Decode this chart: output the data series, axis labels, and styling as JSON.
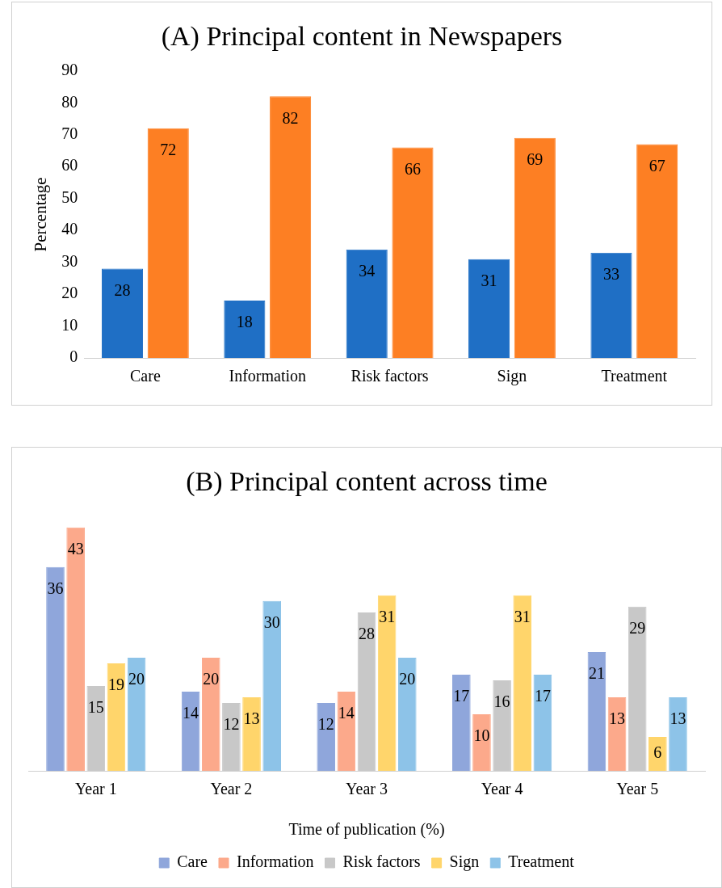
{
  "chart_data": [
    {
      "type": "bar",
      "title": "(A) Principal content in Newspapers",
      "ylabel": "Percentage",
      "categories": [
        "Care",
        "Information",
        "Risk factors",
        "Sign",
        "Treatment"
      ],
      "series": [
        {
          "color": "#1f6fc5",
          "values": [
            28,
            18,
            34,
            31,
            33
          ]
        },
        {
          "color": "#fd7f23",
          "values": [
            72,
            82,
            66,
            69,
            67
          ]
        }
      ],
      "ylim": [
        0,
        90
      ],
      "yticks": [
        0,
        10,
        20,
        30,
        40,
        50,
        60,
        70,
        80,
        90
      ],
      "grid": false,
      "legend": false,
      "data_labels": true
    },
    {
      "type": "bar",
      "title": "(B) Principal content across time",
      "xlabel": "Time of publication (%)",
      "categories": [
        "Year 1",
        "Year 2",
        "Year 3",
        "Year 4",
        "Year 5"
      ],
      "series": [
        {
          "name": "Care",
          "color": "#8fa6db",
          "values": [
            36,
            14,
            12,
            17,
            21
          ]
        },
        {
          "name": "Information",
          "color": "#fca98b",
          "values": [
            43,
            20,
            14,
            10,
            13
          ]
        },
        {
          "name": "Risk factors",
          "color": "#c8c8c8",
          "values": [
            15,
            12,
            28,
            16,
            29
          ]
        },
        {
          "name": "Sign",
          "color": "#ffd56b",
          "values": [
            19,
            13,
            31,
            31,
            6
          ]
        },
        {
          "name": "Treatment",
          "color": "#8dc3e8",
          "values": [
            20,
            30,
            20,
            17,
            13
          ]
        }
      ],
      "tick_labels": "x",
      "grid": false,
      "legend": "bottom",
      "data_labels": true
    }
  ]
}
